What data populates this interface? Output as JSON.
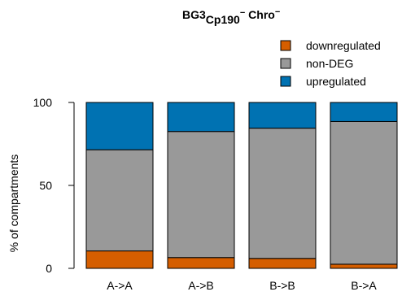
{
  "chart_data": {
    "type": "bar",
    "stacked": true,
    "title": {
      "base": "BG3",
      "sub": "Cp190",
      "sub_sup": "−",
      "after": " Chro",
      "after_sup": "−"
    },
    "xlabel": "",
    "ylabel": "% of compartments",
    "ylim": [
      0,
      100
    ],
    "yticks": [
      0,
      50,
      100
    ],
    "grid": false,
    "legend_position": "top-right",
    "categories": [
      "A->A",
      "A->B",
      "B->B",
      "B->A"
    ],
    "series": [
      {
        "name": "downregulated",
        "color": "#D55E00",
        "values": [
          10.5,
          6.5,
          6,
          2.5
        ]
      },
      {
        "name": "non-DEG",
        "color": "#999999",
        "values": [
          61,
          76,
          78.5,
          86
        ]
      },
      {
        "name": "upregulated",
        "color": "#0072B2",
        "values": [
          28.5,
          17.5,
          15.5,
          11.5
        ]
      }
    ],
    "legend_order": [
      "downregulated",
      "non-DEG",
      "upregulated"
    ]
  }
}
